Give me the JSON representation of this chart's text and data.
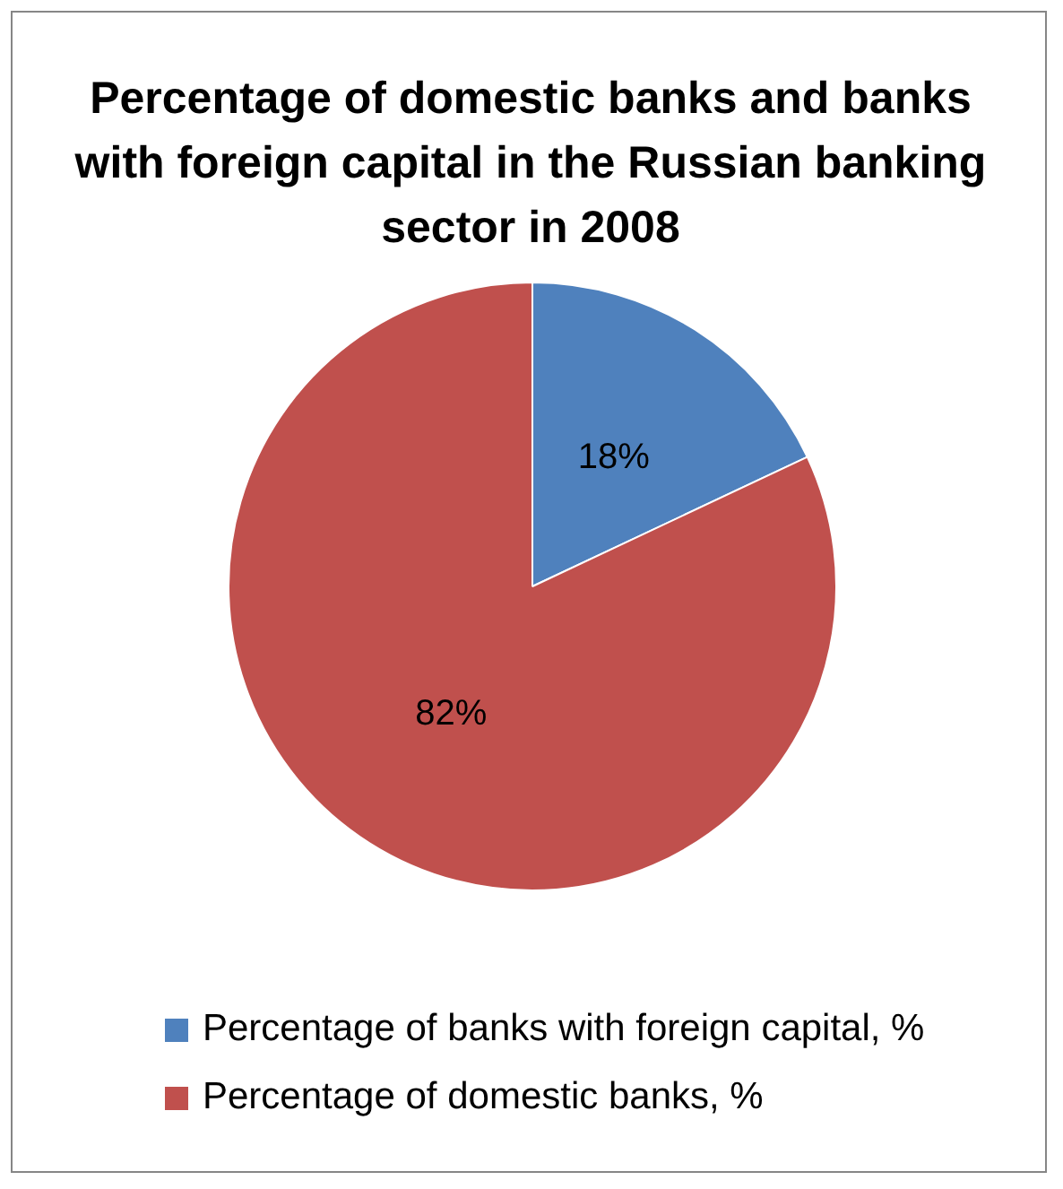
{
  "chart_data": {
    "type": "pie",
    "title": "Percentage of domestic banks and banks with foreign capital in the Russian banking sector in 2008",
    "categories": [
      "Percentage of banks with foreign capital, %",
      "Percentage of domestic banks, %"
    ],
    "values": [
      18,
      82
    ],
    "colors": [
      "#4f81bd",
      "#c0504d"
    ],
    "value_labels": [
      "18%",
      "82%"
    ],
    "legend": "bottom"
  }
}
